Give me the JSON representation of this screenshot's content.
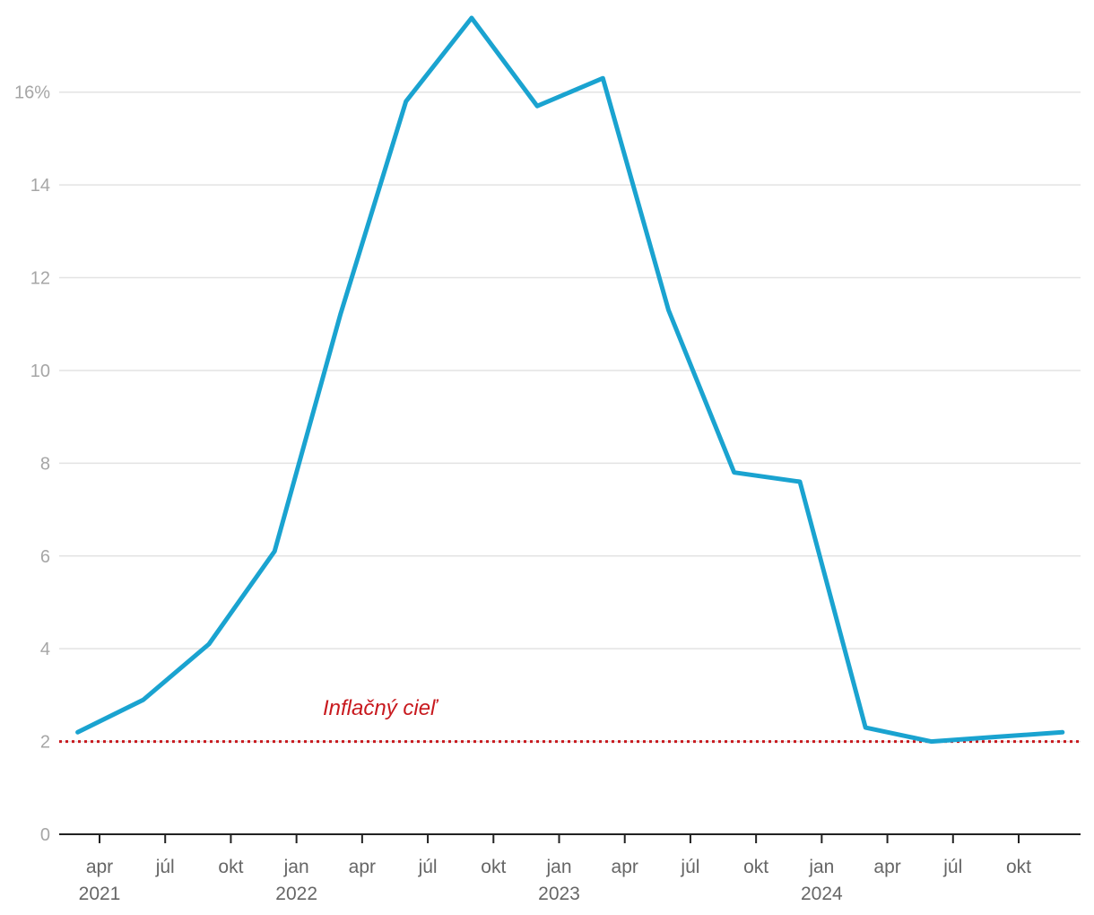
{
  "chart_data": {
    "type": "line",
    "y_unit": "%",
    "ylim": [
      0,
      17.6
    ],
    "y_ticks": [
      0,
      2,
      4,
      6,
      8,
      10,
      12,
      14,
      16
    ],
    "y_tick_labels": [
      "0",
      "2",
      "4",
      "6",
      "8",
      "10",
      "12",
      "14",
      "16%"
    ],
    "grid": true,
    "x_tick_labels": [
      {
        "month": "apr",
        "year": "2021"
      },
      {
        "month": "júl",
        "year": ""
      },
      {
        "month": "okt",
        "year": ""
      },
      {
        "month": "jan",
        "year": "2022"
      },
      {
        "month": "apr",
        "year": ""
      },
      {
        "month": "júl",
        "year": ""
      },
      {
        "month": "okt",
        "year": ""
      },
      {
        "month": "jan",
        "year": "2023"
      },
      {
        "month": "apr",
        "year": ""
      },
      {
        "month": "júl",
        "year": ""
      },
      {
        "month": "okt",
        "year": ""
      },
      {
        "month": "jan",
        "year": "2024"
      },
      {
        "month": "apr",
        "year": ""
      },
      {
        "month": "júl",
        "year": ""
      },
      {
        "month": "okt",
        "year": ""
      }
    ],
    "series": [
      {
        "color": "#1aa3d0",
        "x": [
          "2021-03",
          "2021-06",
          "2021-09",
          "2021-12",
          "2022-03",
          "2022-06",
          "2022-09",
          "2022-12",
          "2023-03",
          "2023-06",
          "2023-09",
          "2023-12",
          "2024-03",
          "2024-06",
          "2024-09",
          "2024-12"
        ],
        "values": [
          2.2,
          2.9,
          4.1,
          6.1,
          11.2,
          15.8,
          17.6,
          15.7,
          16.3,
          11.3,
          7.8,
          7.6,
          2.3,
          2.0,
          2.1,
          2.2
        ]
      }
    ],
    "target": {
      "value": 2,
      "label": "Inflačný cieľ",
      "color": "#c8191e"
    }
  }
}
